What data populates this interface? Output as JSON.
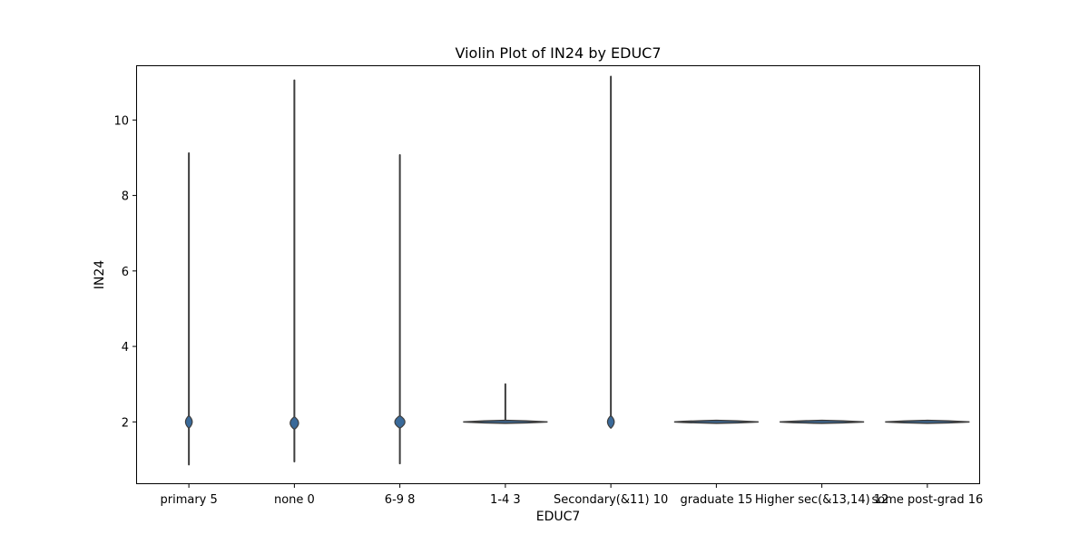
{
  "chart_data": {
    "type": "violin",
    "title": "Violin Plot of IN24 by EDUC7",
    "xlabel": "EDUC7",
    "ylabel": "IN24",
    "ylim": [
      0.35,
      11.45
    ],
    "yticks": [
      2,
      4,
      6,
      8,
      10
    ],
    "grid": false,
    "colors": {
      "violin_fill": "#3a6a9a",
      "violin_edge": "#3d3d3d",
      "frame": "#000000"
    },
    "categories": [
      "primary 5",
      "none 0",
      "6-9 8",
      "1-4 3",
      "Secondary(&11) 10",
      "graduate 15",
      "Higher sec(&13,14) 12",
      "some post-grad 16"
    ],
    "violins": [
      {
        "category": "primary 5",
        "min": 0.87,
        "max": 9.12,
        "center": 2.0,
        "bulge_halfwidth": 0.04
      },
      {
        "category": "none 0",
        "min": 0.95,
        "max": 11.05,
        "center": 1.97,
        "bulge_halfwidth": 0.05
      },
      {
        "category": "6-9 8",
        "min": 0.9,
        "max": 9.07,
        "center": 2.0,
        "bulge_halfwidth": 0.06
      },
      {
        "category": "1-4 3",
        "min": 1.98,
        "max": 3.0,
        "center": 2.0,
        "bulge_halfwidth": 0.4
      },
      {
        "category": "Secondary(&11) 10",
        "min": 1.87,
        "max": 11.15,
        "center": 2.0,
        "bulge_halfwidth": 0.04
      },
      {
        "category": "graduate 15",
        "min": 2.0,
        "max": 2.0,
        "center": 2.0,
        "bulge_halfwidth": 0.4
      },
      {
        "category": "Higher sec(&13,14) 12",
        "min": 2.0,
        "max": 2.0,
        "center": 2.0,
        "bulge_halfwidth": 0.4
      },
      {
        "category": "some post-grad 16",
        "min": 2.0,
        "max": 2.0,
        "center": 2.0,
        "bulge_halfwidth": 0.4
      }
    ]
  }
}
